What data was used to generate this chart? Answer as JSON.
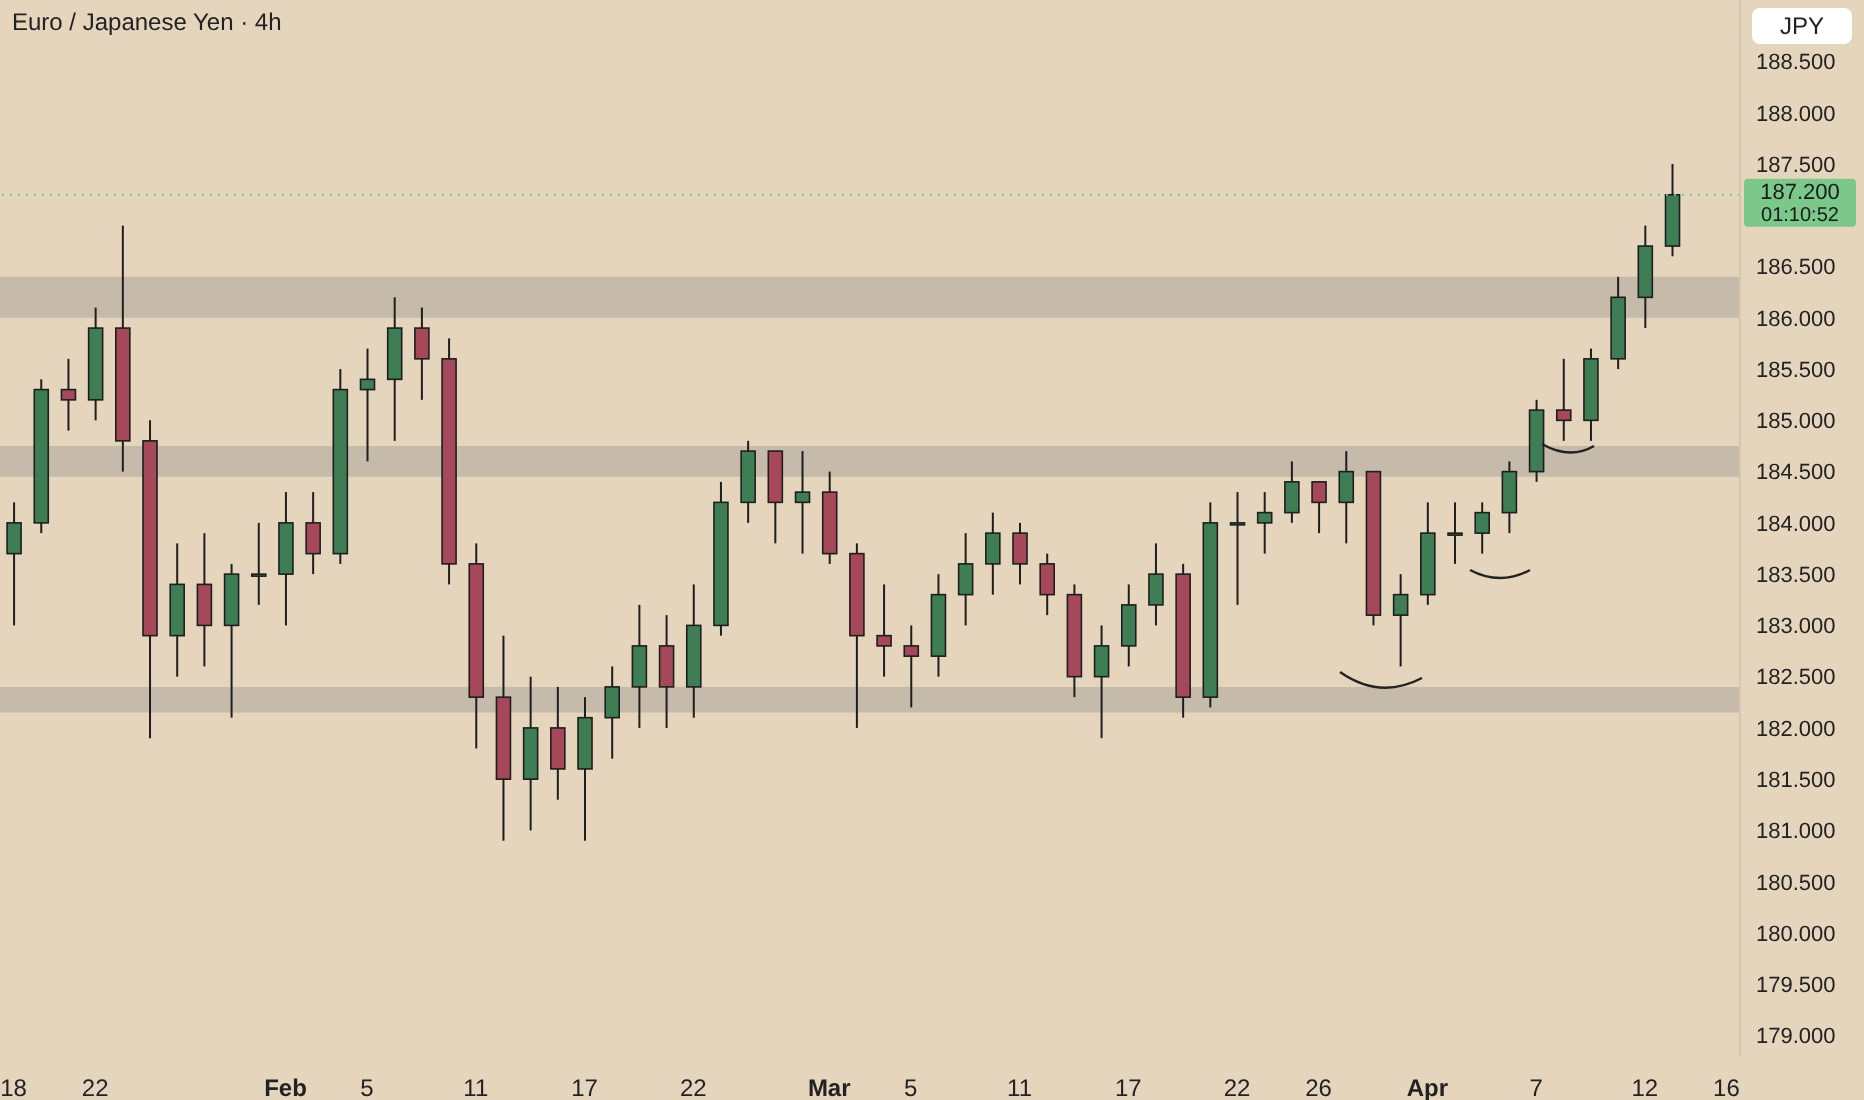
{
  "chart_data": {
    "type": "candlestick",
    "title": "Euro / Japanese Yen · 4h",
    "ylabel": "JPY",
    "categories": [
      "18",
      null,
      null,
      "22",
      null,
      null,
      null,
      null,
      null,
      null,
      "Feb",
      null,
      null,
      "5",
      null,
      null,
      null,
      "11",
      null,
      null,
      null,
      "17",
      null,
      null,
      null,
      "22",
      null,
      null,
      null,
      null,
      "Mar",
      null,
      null,
      "5",
      null,
      null,
      null,
      "11",
      null,
      null,
      null,
      "17",
      null,
      null,
      null,
      "22",
      null,
      null,
      "26",
      null,
      null,
      null,
      "Apr",
      null,
      null,
      null,
      "7",
      null,
      null,
      null,
      "12",
      null,
      null,
      "16"
    ],
    "ohlc": [
      [
        183.7,
        184.2,
        183.0,
        184.0
      ],
      [
        184.0,
        185.4,
        183.9,
        185.3
      ],
      [
        185.3,
        185.6,
        184.9,
        185.2
      ],
      [
        185.2,
        186.1,
        185.0,
        185.9
      ],
      [
        185.9,
        186.9,
        184.5,
        184.8
      ],
      [
        184.8,
        185.0,
        181.9,
        182.9
      ],
      [
        182.9,
        183.8,
        182.5,
        183.4
      ],
      [
        183.4,
        183.9,
        182.6,
        183.0
      ],
      [
        183.0,
        183.6,
        182.1,
        183.5
      ],
      [
        183.5,
        184.0,
        183.2,
        183.5
      ],
      [
        183.5,
        184.3,
        183.0,
        184.0
      ],
      [
        184.0,
        184.3,
        183.5,
        183.7
      ],
      [
        183.7,
        185.5,
        183.6,
        185.3
      ],
      [
        185.3,
        185.7,
        184.6,
        185.4
      ],
      [
        185.4,
        186.2,
        184.8,
        185.9
      ],
      [
        185.9,
        186.1,
        185.2,
        185.6
      ],
      [
        185.6,
        185.8,
        183.4,
        183.6
      ],
      [
        183.6,
        183.8,
        181.8,
        182.3
      ],
      [
        182.3,
        182.9,
        180.9,
        181.5
      ],
      [
        181.5,
        182.5,
        181.0,
        182.0
      ],
      [
        182.0,
        182.4,
        181.3,
        181.6
      ],
      [
        181.6,
        182.3,
        180.9,
        182.1
      ],
      [
        182.1,
        182.6,
        181.7,
        182.4
      ],
      [
        182.4,
        183.2,
        182.0,
        182.8
      ],
      [
        182.8,
        183.1,
        182.0,
        182.4
      ],
      [
        182.4,
        183.4,
        182.1,
        183.0
      ],
      [
        183.0,
        184.4,
        182.9,
        184.2
      ],
      [
        184.2,
        184.8,
        184.0,
        184.7
      ],
      [
        184.7,
        184.7,
        183.8,
        184.2
      ],
      [
        184.2,
        184.7,
        183.7,
        184.3
      ],
      [
        184.3,
        184.5,
        183.6,
        183.7
      ],
      [
        183.7,
        183.8,
        182.0,
        182.9
      ],
      [
        182.9,
        183.4,
        182.5,
        182.8
      ],
      [
        182.8,
        183.0,
        182.2,
        182.7
      ],
      [
        182.7,
        183.5,
        182.5,
        183.3
      ],
      [
        183.3,
        183.9,
        183.0,
        183.6
      ],
      [
        183.6,
        184.1,
        183.3,
        183.9
      ],
      [
        183.9,
        184.0,
        183.4,
        183.6
      ],
      [
        183.6,
        183.7,
        183.1,
        183.3
      ],
      [
        183.3,
        183.4,
        182.3,
        182.5
      ],
      [
        182.5,
        183.0,
        181.9,
        182.8
      ],
      [
        182.8,
        183.4,
        182.6,
        183.2
      ],
      [
        183.2,
        183.8,
        183.0,
        183.5
      ],
      [
        183.5,
        183.6,
        182.1,
        182.3
      ],
      [
        182.3,
        184.2,
        182.2,
        184.0
      ],
      [
        184.0,
        184.3,
        183.2,
        184.0
      ],
      [
        184.0,
        184.3,
        183.7,
        184.1
      ],
      [
        184.1,
        184.6,
        184.0,
        184.4
      ],
      [
        184.4,
        184.4,
        183.9,
        184.2
      ],
      [
        184.2,
        184.7,
        183.8,
        184.5
      ],
      [
        184.5,
        184.5,
        183.0,
        183.1
      ],
      [
        183.1,
        183.5,
        182.6,
        183.3
      ],
      [
        183.3,
        184.2,
        183.2,
        183.9
      ],
      [
        183.9,
        184.2,
        183.6,
        183.9
      ],
      [
        183.9,
        184.2,
        183.7,
        184.1
      ],
      [
        184.1,
        184.6,
        183.9,
        184.5
      ],
      [
        184.5,
        185.2,
        184.4,
        185.1
      ],
      [
        185.1,
        185.6,
        184.8,
        185.0
      ],
      [
        185.0,
        185.7,
        184.8,
        185.6
      ],
      [
        185.6,
        186.4,
        185.5,
        186.2
      ],
      [
        186.2,
        186.9,
        185.9,
        186.7
      ],
      [
        186.7,
        187.5,
        186.6,
        187.2
      ],
      null,
      null
    ],
    "ylim": [
      178.8,
      189.1
    ],
    "yticks": [
      {
        "value": 179,
        "label": "179.000"
      },
      {
        "value": 179.5,
        "label": "179.500"
      },
      {
        "value": 180,
        "label": "180.000"
      },
      {
        "value": 180.5,
        "label": "180.500"
      },
      {
        "value": 181,
        "label": "181.000"
      },
      {
        "value": 181.5,
        "label": "181.500"
      },
      {
        "value": 182,
        "label": "182.000"
      },
      {
        "value": 182.5,
        "label": "182.500"
      },
      {
        "value": 183,
        "label": "183.000"
      },
      {
        "value": 183.5,
        "label": "183.500"
      },
      {
        "value": 184,
        "label": "184.000"
      },
      {
        "value": 184.5,
        "label": "184.500"
      },
      {
        "value": 185,
        "label": "185.000"
      },
      {
        "value": 185.5,
        "label": "185.500"
      },
      {
        "value": 186,
        "label": "186.000"
      },
      {
        "value": 186.5,
        "label": "186.500"
      },
      {
        "value": 187.5,
        "label": "187.500"
      },
      {
        "value": 188,
        "label": "188.000"
      },
      {
        "value": 188.5,
        "label": "188.500"
      }
    ],
    "bands": [
      {
        "axis": "y",
        "from": 186.0,
        "to": 186.4,
        "color": "#c6baab"
      },
      {
        "axis": "y",
        "from": 184.45,
        "to": 184.75,
        "color": "#c6baab"
      },
      {
        "axis": "y",
        "from": 182.15,
        "to": 182.4,
        "color": "#c6baab"
      }
    ],
    "ref_lines": [
      {
        "axis": "y",
        "value": 187.2,
        "label": "187.200",
        "color": "#7cc88a",
        "line_style": "dotted"
      }
    ],
    "annotations": [
      "01:10:52"
    ]
  }
}
